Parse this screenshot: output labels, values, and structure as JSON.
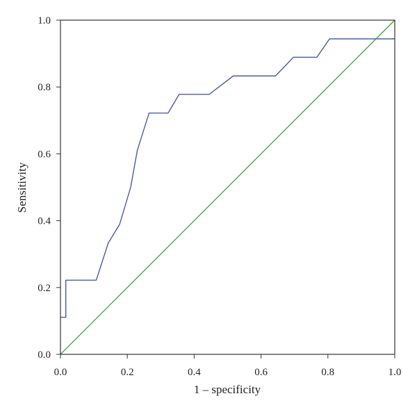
{
  "chart_data": {
    "type": "line",
    "title": "",
    "xlabel": "1 – specificity",
    "ylabel": "Sensitivity",
    "xlim": [
      0,
      1
    ],
    "ylim": [
      0,
      1
    ],
    "xticks": [
      "0.0",
      "0.2",
      "0.4",
      "0.6",
      "0.8",
      "1.0"
    ],
    "yticks": [
      "0.0",
      "0.2",
      "0.4",
      "0.6",
      "0.8",
      "1.0"
    ],
    "grid": false,
    "legend": "none",
    "series": [
      {
        "color": "#3a4fa3",
        "points": [
          [
            0,
            0.111
          ],
          [
            0.016,
            0.111
          ],
          [
            0.016,
            0.222
          ],
          [
            0.107,
            0.222
          ],
          [
            0.143,
            0.333
          ],
          [
            0.177,
            0.389
          ],
          [
            0.21,
            0.5
          ],
          [
            0.23,
            0.611
          ],
          [
            0.265,
            0.722
          ],
          [
            0.322,
            0.722
          ],
          [
            0.355,
            0.778
          ],
          [
            0.445,
            0.778
          ],
          [
            0.517,
            0.833
          ],
          [
            0.643,
            0.833
          ],
          [
            0.697,
            0.889
          ],
          [
            0.767,
            0.889
          ],
          [
            0.805,
            0.944
          ],
          [
            1.0,
            0.944
          ]
        ]
      },
      {
        "color": "#3aa03a",
        "points": [
          [
            0,
            0
          ],
          [
            1,
            1
          ]
        ]
      }
    ]
  }
}
